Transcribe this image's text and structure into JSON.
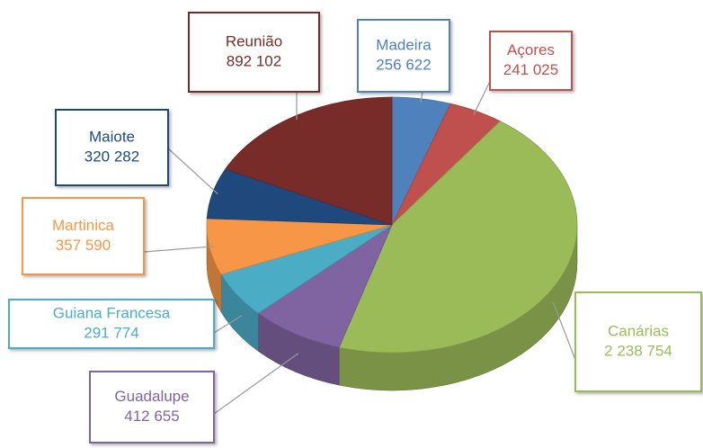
{
  "chart_data": {
    "type": "pie",
    "categories": [
      "Madeira",
      "Açores",
      "Canárias",
      "Guadalupe",
      "Guiana Francesa",
      "Martinica",
      "Maiote",
      "Reunião"
    ],
    "values": [
      256622,
      241025,
      2238754,
      412655,
      291774,
      357590,
      320282,
      892102
    ],
    "value_labels": [
      "256 622",
      "241 025",
      "2 238 754",
      "412 655",
      "291 774",
      "357 590",
      "320 282",
      "892 102"
    ],
    "colors": [
      "#4f81bd",
      "#c0504d",
      "#9bbb59",
      "#8064a2",
      "#4bacc6",
      "#f79646",
      "#1f497d",
      "#772c2a"
    ]
  }
}
